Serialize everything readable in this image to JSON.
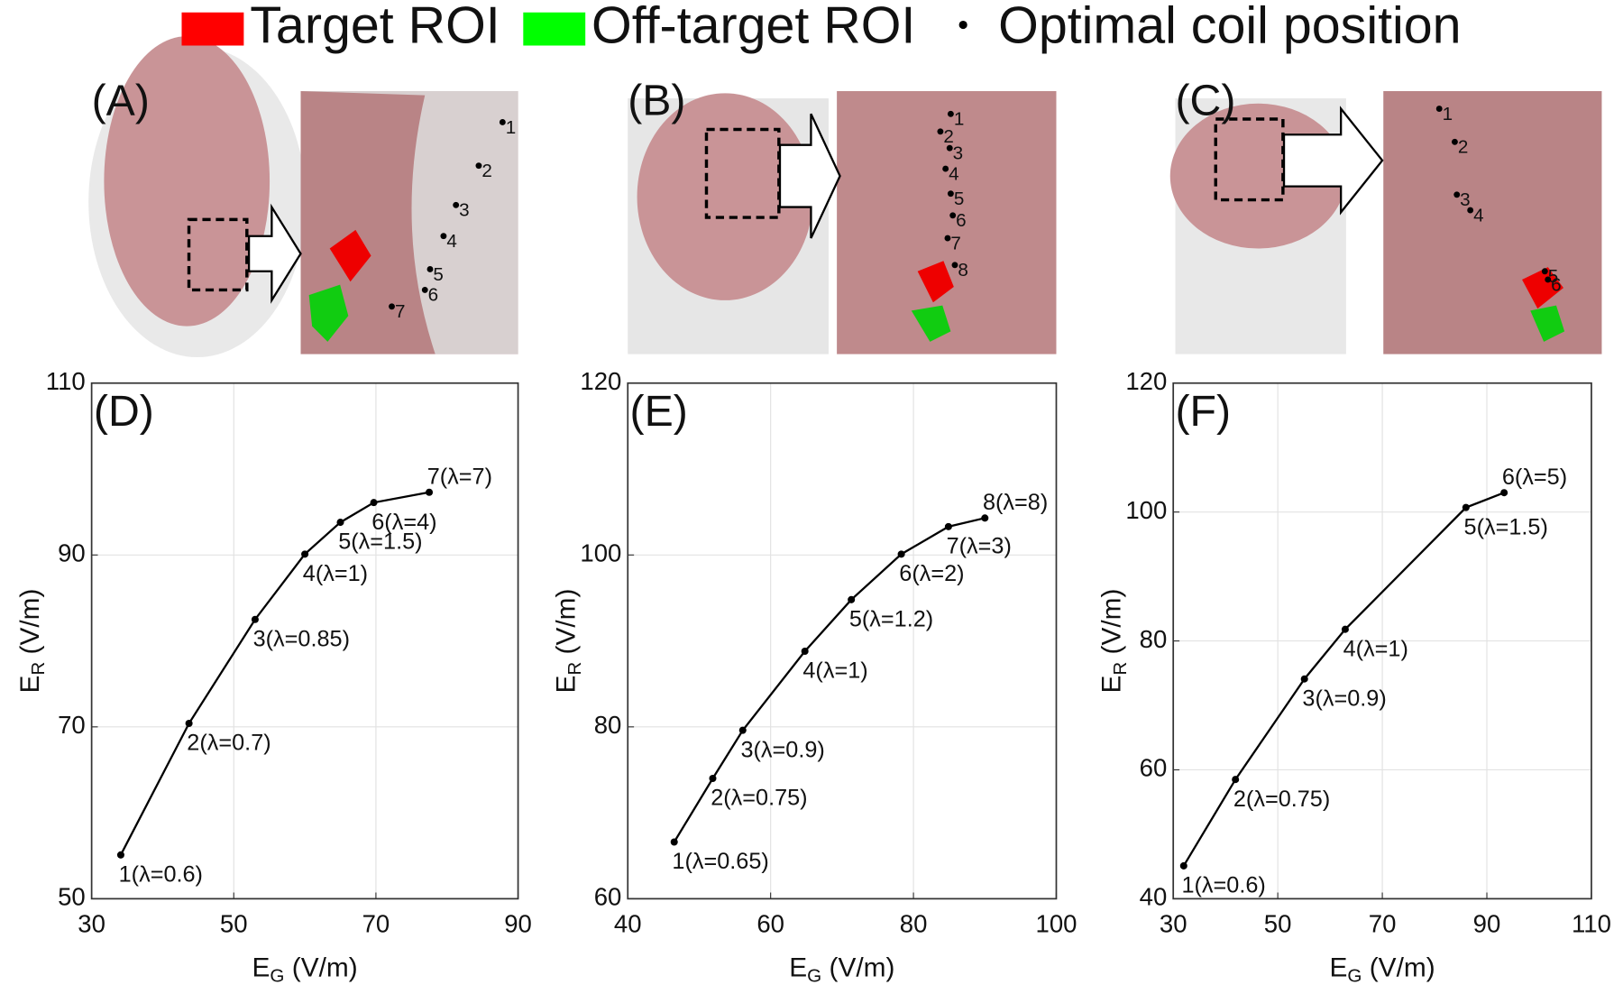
{
  "legend": [
    {
      "name": "Target ROI",
      "color": "#ff0000"
    },
    {
      "name": "Off-target ROI",
      "color": "#00ff00"
    },
    {
      "name": "Optimal coil position",
      "color": "#000000"
    }
  ],
  "panels": [
    {
      "label": "(A)",
      "points": [
        "1",
        "2",
        "3",
        "4",
        "5",
        "6",
        "7"
      ]
    },
    {
      "label": "(B)",
      "points": [
        "1",
        "2",
        "3",
        "4",
        "5",
        "6",
        "7",
        "8"
      ]
    },
    {
      "label": "(C)",
      "points": [
        "1",
        "2",
        "3",
        "4",
        "5",
        "6"
      ]
    }
  ],
  "chart_data": [
    {
      "type": "line",
      "label": "(D)",
      "xlabel": [
        "E",
        "G",
        " (V/m)"
      ],
      "ylabel": [
        "E",
        "R",
        " (V/m)"
      ],
      "color": "#000000",
      "grid": true,
      "x": [
        34.1,
        43.7,
        53.0,
        60.0,
        65.0,
        69.7,
        77.5
      ],
      "values": [
        55.1,
        70.4,
        82.5,
        90.1,
        93.8,
        96.1,
        97.3
      ],
      "annotations": [
        "1(λ=0.6)",
        "2(λ=0.7)",
        "3(λ=0.85)",
        "4(λ=1)",
        "5(λ=1.5)",
        "6(λ=4)",
        "7(λ=7)"
      ],
      "xlim": [
        30,
        90
      ],
      "xticks": [
        30,
        50,
        70,
        90
      ],
      "ylim": [
        50,
        110
      ],
      "yticks": [
        50,
        70,
        90,
        110
      ]
    },
    {
      "type": "line",
      "label": "(E)",
      "xlabel": [
        "E",
        "G",
        " (V/m)"
      ],
      "ylabel": [
        "E",
        "R",
        " (V/m)"
      ],
      "color": "#000000",
      "grid": true,
      "x": [
        46.5,
        51.9,
        56.1,
        64.8,
        71.3,
        78.3,
        84.9,
        90.0
      ],
      "values": [
        66.6,
        74.0,
        79.6,
        88.8,
        94.8,
        100.1,
        103.3,
        104.3
      ],
      "annotations": [
        "1(λ=0.65)",
        "2(λ=0.75)",
        "3(λ=0.9)",
        "4(λ=1)",
        "5(λ=1.2)",
        "6(λ=2)",
        "7(λ=3)",
        "8(λ=8)"
      ],
      "xlim": [
        40,
        100
      ],
      "xticks": [
        40,
        60,
        80,
        100
      ],
      "ylim": [
        60,
        120
      ],
      "yticks": [
        60,
        80,
        100,
        120
      ]
    },
    {
      "type": "line",
      "label": "(F)",
      "xlabel": [
        "E",
        "G",
        " (V/m)"
      ],
      "ylabel": [
        "E",
        "R",
        " (V/m)"
      ],
      "color": "#000000",
      "grid": true,
      "x": [
        32.0,
        41.9,
        55.1,
        62.9,
        86.0,
        93.3
      ],
      "values": [
        45.1,
        58.5,
        74.1,
        81.8,
        100.7,
        103.0
      ],
      "annotations": [
        "1(λ=0.6)",
        "2(λ=0.75)",
        "3(λ=0.9)",
        "4(λ=1)",
        "5(λ=1.5)",
        "6(λ=5)"
      ],
      "xlim": [
        30,
        110
      ],
      "xticks": [
        30,
        50,
        70,
        90,
        110
      ],
      "ylim": [
        40,
        120
      ],
      "yticks": [
        40,
        60,
        80,
        100,
        120
      ]
    }
  ]
}
